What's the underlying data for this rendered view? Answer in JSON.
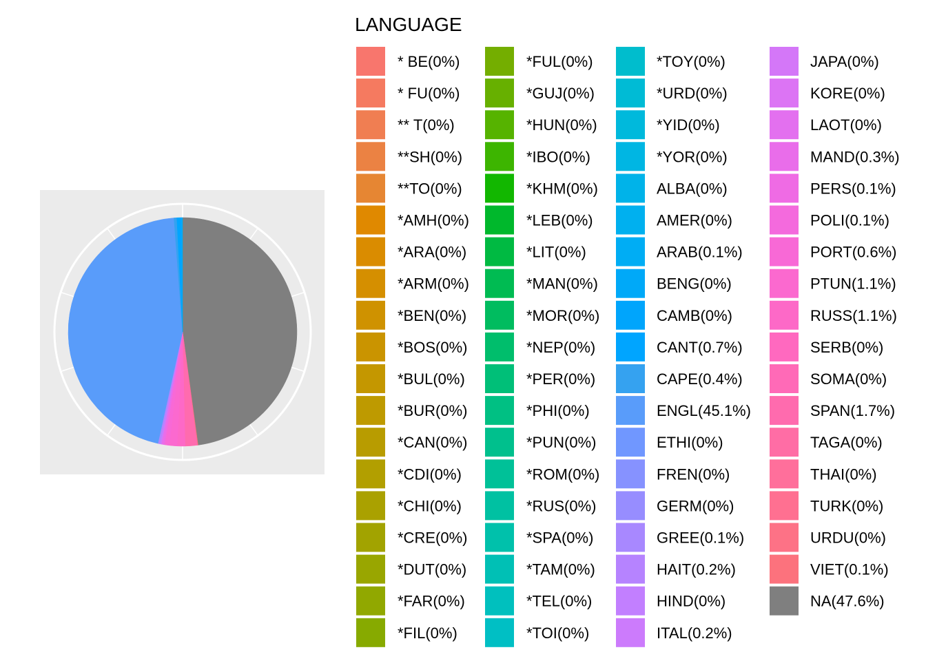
{
  "chart_data": {
    "type": "pie",
    "legend_title": "LANGUAGE",
    "legend_placement": "right",
    "grid": true,
    "slices": [
      {
        "label": "* BE(0%)",
        "value": 0,
        "color": "#F8766D"
      },
      {
        "label": "* FU(0%)",
        "value": 0,
        "color": "#F57A60"
      },
      {
        "label": "** T(0%)",
        "value": 0,
        "color": "#F07E52"
      },
      {
        "label": "**SH(0%)",
        "value": 0,
        "color": "#EB8243"
      },
      {
        "label": "**TO(0%)",
        "value": 0,
        "color": "#E68633"
      },
      {
        "label": "*AMH(0%)",
        "value": 0,
        "color": "#E08900"
      },
      {
        "label": "*ARA(0%)",
        "value": 0,
        "color": "#DA8C00"
      },
      {
        "label": "*ARM(0%)",
        "value": 0,
        "color": "#D58F00"
      },
      {
        "label": "*BEN(0%)",
        "value": 0,
        "color": "#CF9200"
      },
      {
        "label": "*BOS(0%)",
        "value": 0,
        "color": "#CA9400"
      },
      {
        "label": "*BUL(0%)",
        "value": 0,
        "color": "#C49700"
      },
      {
        "label": "*BUR(0%)",
        "value": 0,
        "color": "#BE9A00"
      },
      {
        "label": "*CAN(0%)",
        "value": 0,
        "color": "#B89C00"
      },
      {
        "label": "*CDI(0%)",
        "value": 0,
        "color": "#B29F00"
      },
      {
        "label": "*CHI(0%)",
        "value": 0,
        "color": "#AAA100"
      },
      {
        "label": "*CRE(0%)",
        "value": 0,
        "color": "#A2A300"
      },
      {
        "label": "*DUT(0%)",
        "value": 0,
        "color": "#99A600"
      },
      {
        "label": "*FAR(0%)",
        "value": 0,
        "color": "#91A800"
      },
      {
        "label": "*FIL(0%)",
        "value": 0,
        "color": "#87AA00"
      },
      {
        "label": "*FUL(0%)",
        "value": 0,
        "color": "#74AE00"
      },
      {
        "label": "*GUJ(0%)",
        "value": 0,
        "color": "#67B000"
      },
      {
        "label": "*HUN(0%)",
        "value": 0,
        "color": "#56B300"
      },
      {
        "label": "*IBO(0%)",
        "value": 0,
        "color": "#3DB500"
      },
      {
        "label": "*KHM(0%)",
        "value": 0,
        "color": "#12B700"
      },
      {
        "label": "*LEB(0%)",
        "value": 0,
        "color": "#00B82C"
      },
      {
        "label": "*LIT(0%)",
        "value": 0,
        "color": "#00BA42"
      },
      {
        "label": "*MAN(0%)",
        "value": 0,
        "color": "#00BB52"
      },
      {
        "label": "*MOR(0%)",
        "value": 0,
        "color": "#00BC5F"
      },
      {
        "label": "*NEP(0%)",
        "value": 0,
        "color": "#00BE6C"
      },
      {
        "label": "*PER(0%)",
        "value": 0,
        "color": "#00BF78"
      },
      {
        "label": "*PHI(0%)",
        "value": 0,
        "color": "#00C083"
      },
      {
        "label": "*PUN(0%)",
        "value": 0,
        "color": "#00C08D"
      },
      {
        "label": "*ROM(0%)",
        "value": 0,
        "color": "#00C198"
      },
      {
        "label": "*RUS(0%)",
        "value": 0,
        "color": "#00C1A2"
      },
      {
        "label": "*SPA(0%)",
        "value": 0,
        "color": "#00C1AB"
      },
      {
        "label": "*TAM(0%)",
        "value": 0,
        "color": "#00C0B5"
      },
      {
        "label": "*TEL(0%)",
        "value": 0,
        "color": "#00C0BE"
      },
      {
        "label": "*TOI(0%)",
        "value": 0,
        "color": "#00BFC4"
      },
      {
        "label": "*TOY(0%)",
        "value": 0,
        "color": "#00BDCD"
      },
      {
        "label": "*URD(0%)",
        "value": 0,
        "color": "#00BBD5"
      },
      {
        "label": "*YID(0%)",
        "value": 0,
        "color": "#00B9DC"
      },
      {
        "label": "*YOR(0%)",
        "value": 0,
        "color": "#00B6E3"
      },
      {
        "label": "ALBA(0%)",
        "value": 0,
        "color": "#00B3E9"
      },
      {
        "label": "AMER(0%)",
        "value": 0,
        "color": "#00B0EF"
      },
      {
        "label": "ARAB(0.1%)",
        "value": 0.1,
        "color": "#00ADF4"
      },
      {
        "label": "BENG(0%)",
        "value": 0,
        "color": "#00A9F8"
      },
      {
        "label": "CAMB(0%)",
        "value": 0,
        "color": "#00A5FC"
      },
      {
        "label": "CANT(0.7%)",
        "value": 0.7,
        "color": "#00A5FF"
      },
      {
        "label": "CAPE(0.4%)",
        "value": 0.4,
        "color": "#35A2F0"
      },
      {
        "label": "ENGL(45.1%)",
        "value": 45.1,
        "color": "#599CFA"
      },
      {
        "label": "ETHI(0%)",
        "value": 0,
        "color": "#7097FF"
      },
      {
        "label": "FREN(0%)",
        "value": 0,
        "color": "#8692FF"
      },
      {
        "label": "GERM(0%)",
        "value": 0,
        "color": "#978DFF"
      },
      {
        "label": "GREE(0.1%)",
        "value": 0.1,
        "color": "#A888FF"
      },
      {
        "label": "HAIT(0.2%)",
        "value": 0.2,
        "color": "#B683FF"
      },
      {
        "label": "HIND(0%)",
        "value": 0,
        "color": "#C27FFF"
      },
      {
        "label": "ITAL(0.2%)",
        "value": 0.2,
        "color": "#CC7BFC"
      },
      {
        "label": "JAPA(0%)",
        "value": 0,
        "color": "#D477F8"
      },
      {
        "label": "KORE(0%)",
        "value": 0,
        "color": "#DC74F4"
      },
      {
        "label": "LAOT(0%)",
        "value": 0,
        "color": "#E370EF"
      },
      {
        "label": "MAND(0.3%)",
        "value": 0.3,
        "color": "#E96DEA"
      },
      {
        "label": "PERS(0.1%)",
        "value": 0.1,
        "color": "#EF6BE4"
      },
      {
        "label": "POLI(0.1%)",
        "value": 0.1,
        "color": "#F46ADD"
      },
      {
        "label": "PORT(0.6%)",
        "value": 0.6,
        "color": "#F869D6"
      },
      {
        "label": "PTUN(1.1%)",
        "value": 1.1,
        "color": "#FB69CF"
      },
      {
        "label": "RUSS(1.1%)",
        "value": 1.1,
        "color": "#FD69C7"
      },
      {
        "label": "SERB(0%)",
        "value": 0,
        "color": "#FF69BF"
      },
      {
        "label": "SOMA(0%)",
        "value": 0,
        "color": "#FF6AB7"
      },
      {
        "label": "SPAN(1.7%)",
        "value": 1.7,
        "color": "#FF6BAE"
      },
      {
        "label": "TAGA(0%)",
        "value": 0,
        "color": "#FF6DA5"
      },
      {
        "label": "THAI(0%)",
        "value": 0,
        "color": "#FF6F9B"
      },
      {
        "label": "TURK(0%)",
        "value": 0,
        "color": "#FF7091"
      },
      {
        "label": "URDU(0%)",
        "value": 0,
        "color": "#FD7286"
      },
      {
        "label": "VIET(0.1%)",
        "value": 0.1,
        "color": "#FC727D"
      },
      {
        "label": "NA(47.6%)",
        "value": 47.6,
        "color": "#7F7F7F"
      }
    ]
  }
}
